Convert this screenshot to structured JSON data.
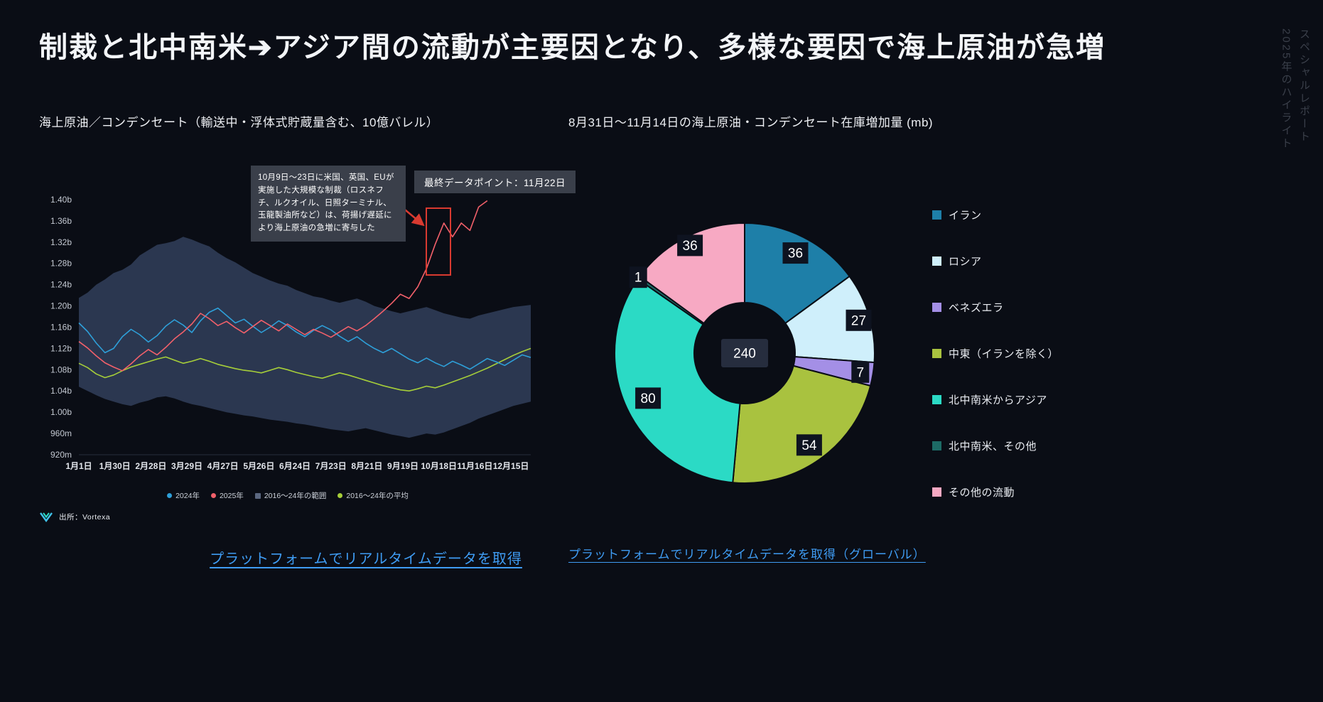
{
  "page": {
    "title": "制裁と北中南米➔アジア間の流動が主要因となり、多様な要因で海上原油が急増",
    "side_note_line1": "スペシャルレポート",
    "side_note_line2": "2025年のハイライト",
    "source_label": "出所：Vortexa"
  },
  "left_chart": {
    "title": "海上原油／コンデンセート（輸送中・浮体式貯蔵量含む、10億バレル）",
    "annotation": "10月9日〜23日に米国、英国、EUが実施した大規模な制裁（ロスネフチ、ルクオイル、日照ターミナル、玉龍製油所など）は、荷揚げ遅延により海上原油の急増に寄与した",
    "last_point_label": "最終データポイント：11月22日",
    "link": "プラットフォームでリアルタイムデータを取得"
  },
  "right_chart": {
    "title": "8月31日〜11月14日の海上原油・コンデンセート在庫増加量 (mb)",
    "link": "プラットフォームでリアルタイムデータを取得（グローバル）"
  },
  "chart_data": [
    {
      "type": "line",
      "title": "海上原油／コンデンセート（輸送中・浮体式貯蔵量含む、10億バレル）",
      "unit": "billion barrels",
      "ylim": [
        0.92,
        1.42
      ],
      "x_domain_days": [
        0,
        364
      ],
      "x_tick_labels": [
        "1月1日",
        "1月30日",
        "2月28日",
        "3月29日",
        "4月27日",
        "5月26日",
        "6月24日",
        "7月23日",
        "8月21日",
        "9月19日",
        "10月18日",
        "11月16日",
        "12月15日"
      ],
      "x_tick_days": [
        0,
        29,
        58,
        87,
        116,
        145,
        174,
        203,
        232,
        261,
        290,
        319,
        348
      ],
      "y_ticks": [
        {
          "label": "1.40b",
          "value": 1.4
        },
        {
          "label": "1.36b",
          "value": 1.36
        },
        {
          "label": "1.32b",
          "value": 1.32
        },
        {
          "label": "1.28b",
          "value": 1.28
        },
        {
          "label": "1.24b",
          "value": 1.24
        },
        {
          "label": "1.20b",
          "value": 1.2
        },
        {
          "label": "1.16b",
          "value": 1.16
        },
        {
          "label": "1.12b",
          "value": 1.12
        },
        {
          "label": "1.08b",
          "value": 1.08
        },
        {
          "label": "1.04b",
          "value": 1.04
        },
        {
          "label": "1.00b",
          "value": 1.0
        },
        {
          "label": "960m",
          "value": 0.96
        },
        {
          "label": "920m",
          "value": 0.92
        }
      ],
      "series": [
        {
          "name": "2024年",
          "type": "line",
          "z": 2,
          "color": "#2e9fd8",
          "step_days": 7,
          "values": [
            1.168,
            1.152,
            1.13,
            1.112,
            1.12,
            1.142,
            1.156,
            1.146,
            1.132,
            1.144,
            1.162,
            1.174,
            1.164,
            1.15,
            1.172,
            1.188,
            1.196,
            1.182,
            1.168,
            1.175,
            1.162,
            1.15,
            1.16,
            1.172,
            1.163,
            1.151,
            1.142,
            1.154,
            1.163,
            1.155,
            1.143,
            1.133,
            1.142,
            1.13,
            1.12,
            1.112,
            1.12,
            1.11,
            1.1,
            1.093,
            1.102,
            1.093,
            1.086,
            1.096,
            1.089,
            1.081,
            1.091,
            1.101,
            1.095,
            1.088,
            1.098,
            1.108,
            1.103
          ]
        },
        {
          "name": "2025年",
          "type": "line",
          "z": 3,
          "color": "#f2606a",
          "step_days": 7,
          "values": [
            1.133,
            1.121,
            1.106,
            1.093,
            1.085,
            1.078,
            1.091,
            1.106,
            1.118,
            1.108,
            1.122,
            1.138,
            1.151,
            1.166,
            1.186,
            1.176,
            1.163,
            1.171,
            1.159,
            1.149,
            1.161,
            1.173,
            1.163,
            1.153,
            1.166,
            1.156,
            1.146,
            1.156,
            1.149,
            1.141,
            1.151,
            1.161,
            1.153,
            1.163,
            1.176,
            1.19,
            1.205,
            1.222,
            1.214,
            1.236,
            1.27,
            1.316,
            1.356,
            1.33,
            1.356,
            1.342,
            1.386,
            1.398
          ]
        },
        {
          "name": "2016〜24年の範囲",
          "type": "band",
          "z": 0,
          "color": "#2b3750",
          "legend_color": "#5b6780",
          "step_days": 7,
          "upper": [
            1.215,
            1.225,
            1.24,
            1.25,
            1.262,
            1.268,
            1.278,
            1.295,
            1.305,
            1.315,
            1.318,
            1.322,
            1.33,
            1.325,
            1.318,
            1.312,
            1.3,
            1.29,
            1.282,
            1.272,
            1.262,
            1.255,
            1.248,
            1.242,
            1.238,
            1.23,
            1.224,
            1.218,
            1.215,
            1.21,
            1.206,
            1.21,
            1.214,
            1.208,
            1.2,
            1.195,
            1.19,
            1.186,
            1.19,
            1.194,
            1.198,
            1.192,
            1.186,
            1.182,
            1.178,
            1.176,
            1.182,
            1.186,
            1.19,
            1.194,
            1.198,
            1.2,
            1.202
          ],
          "lower": [
            1.048,
            1.04,
            1.032,
            1.025,
            1.02,
            1.015,
            1.012,
            1.018,
            1.022,
            1.028,
            1.03,
            1.026,
            1.02,
            1.015,
            1.012,
            1.008,
            1.004,
            1.0,
            0.997,
            0.994,
            0.992,
            0.989,
            0.986,
            0.984,
            0.982,
            0.979,
            0.977,
            0.974,
            0.971,
            0.968,
            0.966,
            0.964,
            0.967,
            0.97,
            0.966,
            0.962,
            0.958,
            0.955,
            0.952,
            0.956,
            0.96,
            0.958,
            0.962,
            0.968,
            0.974,
            0.98,
            0.988,
            0.994,
            1.0,
            1.006,
            1.012,
            1.016,
            1.02
          ]
        },
        {
          "name": "2016〜24年の平均",
          "type": "line",
          "z": 1,
          "color": "#a6ce39",
          "step_days": 7,
          "values": [
            1.092,
            1.084,
            1.072,
            1.065,
            1.07,
            1.078,
            1.085,
            1.09,
            1.095,
            1.1,
            1.104,
            1.098,
            1.092,
            1.096,
            1.101,
            1.096,
            1.09,
            1.086,
            1.082,
            1.079,
            1.077,
            1.074,
            1.079,
            1.084,
            1.08,
            1.075,
            1.071,
            1.067,
            1.064,
            1.069,
            1.074,
            1.07,
            1.065,
            1.06,
            1.055,
            1.05,
            1.046,
            1.042,
            1.04,
            1.044,
            1.049,
            1.046,
            1.051,
            1.057,
            1.063,
            1.069,
            1.076,
            1.083,
            1.091,
            1.099,
            1.107,
            1.114,
            1.12
          ]
        }
      ],
      "annotations": {
        "sanctions_text": "10月9日〜23日に米国、英国、EUが実施した大規模な制裁（ロスネフチ、ルクオイル、日照ターミナル、玉龍製油所など）は、荷揚げ遅延により海上原油の急増に寄与した",
        "last_point": "最終データポイント：11月22日"
      },
      "legend_position": "bottom",
      "grid": false
    },
    {
      "type": "pie",
      "subtype": "donut",
      "title": "8月31日〜11月14日の海上原油・コンデンセート在庫増加量 (mb)",
      "center_total": 240,
      "direction": "clockwise",
      "start_angle_deg": 0,
      "gap_color": "#0a0d15",
      "label_bg": "#0e1320",
      "center_bg": "#262d3e",
      "slices": [
        {
          "label": "イラン",
          "value": 36,
          "color": "#1e7fa8"
        },
        {
          "label": "ロシア",
          "value": 27,
          "color": "#cfeffb"
        },
        {
          "label": "ベネズエラ",
          "value": 7,
          "color": "#a48fe6"
        },
        {
          "label": "中東（イランを除く）",
          "value": 54,
          "color": "#a9c23f"
        },
        {
          "label": "北中南米からアジア",
          "value": 80,
          "color": "#2bdac5"
        },
        {
          "label": "北中南米、その他",
          "value": 1,
          "color": "#1d6b66"
        },
        {
          "label": "その他の流動",
          "value": 36,
          "color": "#f7a9c3"
        }
      ],
      "legend_position": "right"
    }
  ]
}
